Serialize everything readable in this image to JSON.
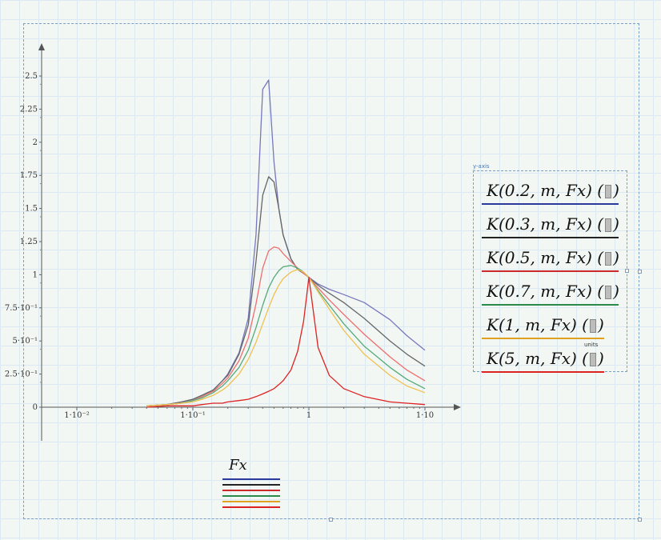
{
  "chart_data": {
    "type": "line",
    "x_scale": "log",
    "x_ticks": [
      "1·10⁻²",
      "1·10⁻¹",
      "1",
      "1·10"
    ],
    "x_tick_values": [
      0.01,
      0.1,
      1,
      10
    ],
    "y_ticks": [
      "0",
      "2.5·10⁻¹",
      "5·10⁻¹",
      "7.5·10⁻¹",
      "1",
      "1.25",
      "1.5",
      "1.75",
      "2",
      "2.25",
      "2.5"
    ],
    "y_tick_values": [
      0,
      0.25,
      0.5,
      0.75,
      1,
      1.25,
      1.5,
      1.75,
      2,
      2.25,
      2.5
    ],
    "xlim": [
      0.01,
      10
    ],
    "ylim": [
      0,
      2.5
    ],
    "xlabel": "Fx",
    "x": [
      0.04,
      0.06,
      0.08,
      0.1,
      0.12,
      0.15,
      0.18,
      0.2,
      0.25,
      0.3,
      0.35,
      0.4,
      0.45,
      0.5,
      0.55,
      0.6,
      0.7,
      0.8,
      0.9,
      1.0,
      1.2,
      1.5,
      2.0,
      3.0,
      5.0,
      7.0,
      10.0
    ],
    "series": [
      {
        "name": "K(0.2,m,Fx)",
        "color": "#7777bb",
        "values": [
          0.01,
          0.02,
          0.04,
          0.06,
          0.09,
          0.13,
          0.2,
          0.25,
          0.41,
          0.67,
          1.3,
          2.4,
          2.47,
          1.85,
          1.5,
          1.3,
          1.12,
          1.04,
          1.01,
          0.98,
          0.93,
          0.89,
          0.85,
          0.79,
          0.66,
          0.54,
          0.43
        ]
      },
      {
        "name": "K(0.3,m,Fx)",
        "color": "#666666",
        "values": [
          0.01,
          0.02,
          0.04,
          0.06,
          0.09,
          0.13,
          0.2,
          0.24,
          0.4,
          0.62,
          1.1,
          1.6,
          1.74,
          1.7,
          1.5,
          1.3,
          1.12,
          1.04,
          1.01,
          0.98,
          0.92,
          0.86,
          0.79,
          0.67,
          0.5,
          0.4,
          0.31
        ]
      },
      {
        "name": "K(0.5,m,Fx)",
        "color": "#ee6e6e",
        "values": [
          0.01,
          0.02,
          0.03,
          0.05,
          0.08,
          0.12,
          0.18,
          0.22,
          0.35,
          0.52,
          0.78,
          1.05,
          1.18,
          1.21,
          1.2,
          1.16,
          1.1,
          1.05,
          1.01,
          0.98,
          0.9,
          0.81,
          0.7,
          0.55,
          0.38,
          0.28,
          0.2
        ]
      },
      {
        "name": "K(0.7,m,Fx)",
        "color": "#55aa77",
        "values": [
          0.01,
          0.02,
          0.03,
          0.05,
          0.07,
          0.11,
          0.16,
          0.2,
          0.3,
          0.43,
          0.6,
          0.77,
          0.9,
          0.98,
          1.03,
          1.06,
          1.07,
          1.05,
          1.02,
          0.98,
          0.88,
          0.77,
          0.63,
          0.46,
          0.3,
          0.21,
          0.14
        ]
      },
      {
        "name": "K(1,m,Fx)",
        "color": "#f0c050",
        "values": [
          0.01,
          0.02,
          0.03,
          0.04,
          0.06,
          0.09,
          0.13,
          0.16,
          0.25,
          0.36,
          0.49,
          0.63,
          0.75,
          0.85,
          0.92,
          0.97,
          1.02,
          1.04,
          1.02,
          0.98,
          0.87,
          0.74,
          0.58,
          0.4,
          0.24,
          0.16,
          0.11
        ]
      },
      {
        "name": "K(5,m,Fx)",
        "color": "#dd2222",
        "values": [
          0.0,
          0.01,
          0.01,
          0.01,
          0.02,
          0.03,
          0.03,
          0.04,
          0.05,
          0.06,
          0.08,
          0.1,
          0.12,
          0.14,
          0.17,
          0.2,
          0.28,
          0.42,
          0.65,
          0.98,
          0.45,
          0.24,
          0.14,
          0.08,
          0.04,
          0.03,
          0.02
        ]
      }
    ]
  },
  "legend": {
    "caption": "y-axis",
    "units_label": "units",
    "entries": [
      {
        "prefix": "K(0.2, m, Fx)",
        "color": "#2c3a9e"
      },
      {
        "prefix": "K(0.3, m, Fx)",
        "color": "#222222"
      },
      {
        "prefix": "K(0.5, m, Fx)",
        "color": "#cc2a2a"
      },
      {
        "prefix": "K(0.7, m, Fx)",
        "color": "#2a8a4a"
      },
      {
        "prefix": "K(1, m, Fx)",
        "color": "#e0a020"
      },
      {
        "prefix": "K(5, m, Fx)",
        "color": "#dd2222"
      }
    ]
  },
  "x_axis": {
    "variable": "Fx",
    "line_colors": [
      "#2c3a9e",
      "#222222",
      "#cc2a2a",
      "#2a8a4a",
      "#e0a020",
      "#dd2222"
    ]
  }
}
